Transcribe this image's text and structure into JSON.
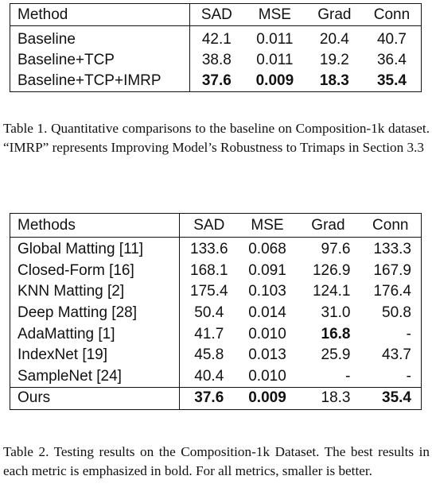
{
  "table1": {
    "headers": [
      "Method",
      "SAD",
      "MSE",
      "Grad",
      "Conn"
    ],
    "rows": [
      {
        "method": "Baseline",
        "sad": "42.1",
        "mse": "0.011",
        "grad": "20.4",
        "conn": "40.7"
      },
      {
        "method": "Baseline+TCP",
        "sad": "38.8",
        "mse": "0.011",
        "grad": "19.2",
        "conn": "36.4"
      },
      {
        "method": "Baseline+TCP+IMRP",
        "sad": "37.6",
        "mse": "0.009",
        "grad": "18.3",
        "conn": "35.4"
      }
    ],
    "caption": "Table 1. Quantitative comparisons to the baseline on Composition-1k dataset. “IMRP” represents Improving Model’s Robustness to Trimaps in Section 3.3"
  },
  "table2": {
    "headers": [
      "Methods",
      "SAD",
      "MSE",
      "Grad",
      "Conn"
    ],
    "rows": [
      {
        "method": "Global Matting [11]",
        "sad": "133.6",
        "mse": "0.068",
        "grad": "97.6",
        "conn": "133.3"
      },
      {
        "method": "Closed-Form [16]",
        "sad": "168.1",
        "mse": "0.091",
        "grad": "126.9",
        "conn": "167.9"
      },
      {
        "method": "KNN Matting [2]",
        "sad": "175.4",
        "mse": "0.103",
        "grad": "124.1",
        "conn": "176.4"
      },
      {
        "method": "Deep Matting [28]",
        "sad": "50.4",
        "mse": "0.014",
        "grad": "31.0",
        "conn": "50.8"
      },
      {
        "method": "AdaMatting [1]",
        "sad": "41.7",
        "mse": "0.010",
        "grad": "16.8",
        "conn": "-"
      },
      {
        "method": "IndexNet [19]",
        "sad": "45.8",
        "mse": "0.013",
        "grad": "25.9",
        "conn": "43.7"
      },
      {
        "method": "SampleNet [24]",
        "sad": "40.4",
        "mse": "0.010",
        "grad": "-",
        "conn": "-"
      }
    ],
    "ours": {
      "method": "Ours",
      "sad": "37.6",
      "mse": "0.009",
      "grad": "18.3",
      "conn": "35.4"
    },
    "caption": "Table 2. Testing results on the Composition-1k Dataset. The best results in each metric is emphasized in bold. For all metrics, smaller is better."
  }
}
